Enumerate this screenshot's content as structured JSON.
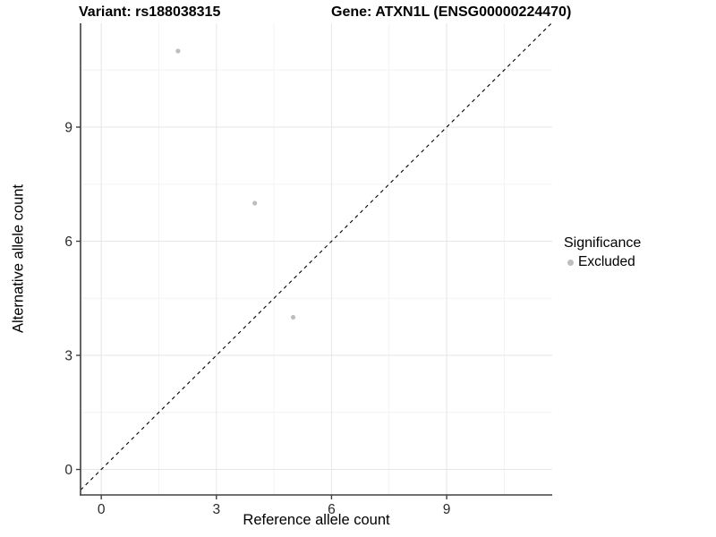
{
  "titles": {
    "variant": "Variant: rs188038315",
    "gene": "Gene: ATXN1L (ENSG00000224470)"
  },
  "axes": {
    "x": {
      "label": "Reference allele count"
    },
    "y": {
      "label": "Alternative allele count"
    }
  },
  "legend": {
    "title": "Significance",
    "items": [
      {
        "label": "Excluded",
        "color": "#bebebe"
      }
    ]
  },
  "colors": {
    "point": "#bebebe",
    "axis_line": "#404040",
    "tick_label": "#2b2b2b",
    "grid_major": "#e6e6e6",
    "grid_minor": "#f3f3f3",
    "reference_line": "#000000",
    "background": "#ffffff"
  },
  "chart_data": {
    "type": "scatter",
    "title": "Variant: rs188038315 | Gene: ATXN1L (ENSG00000224470)",
    "xlabel": "Reference allele count",
    "ylabel": "Alternative allele count",
    "series": [
      {
        "name": "Excluded",
        "color": "#bebebe",
        "points": [
          {
            "x": 2,
            "y": 11
          },
          {
            "x": 4,
            "y": 7
          },
          {
            "x": 5,
            "y": 4
          }
        ]
      }
    ],
    "reference_line": {
      "type": "identity",
      "style": "dashed",
      "color": "#000000"
    },
    "x_ticks": [
      0,
      3,
      6,
      9
    ],
    "y_ticks": [
      0,
      3,
      6,
      9
    ],
    "x_minor_ticks": [
      1.5,
      4.5,
      7.5,
      10.5
    ],
    "y_minor_ticks": [
      1.5,
      4.5,
      7.5,
      10.5
    ],
    "xlim": [
      -0.54,
      11.75
    ],
    "ylim": [
      -0.67,
      11.73
    ],
    "grid": true,
    "legend_position": "right"
  }
}
